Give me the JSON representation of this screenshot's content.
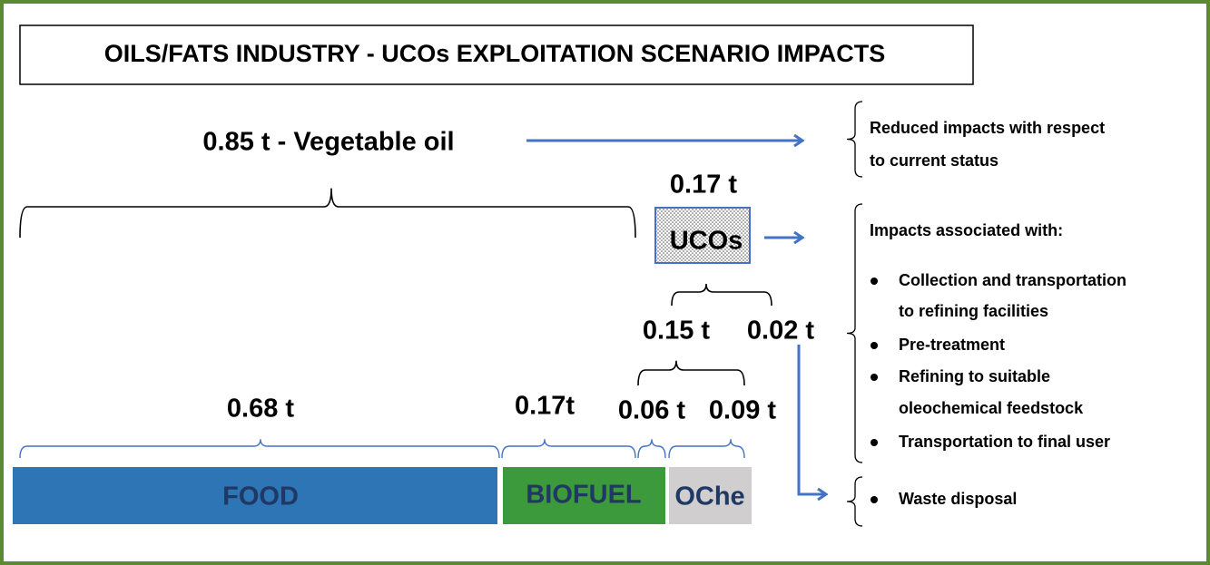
{
  "title": "OILS/FATS INDUSTRY - UCOs EXPLOITATION SCENARIO IMPACTS",
  "flow": {
    "vegetable_oil": "0.85 t - Vegetable oil",
    "ucos_amount": "0.17 t",
    "ucos": "UCOs",
    "ucos_split": [
      "0.15 t",
      "0.02 t"
    ],
    "use_amounts": [
      "0.68 t",
      "0.17t",
      "0.06 t",
      "0.09 t"
    ],
    "uses": [
      "FOOD",
      "BIOFUEL",
      "OChe"
    ]
  },
  "impacts": {
    "reduced": [
      "Reduced impacts with respect",
      "to current status"
    ],
    "associated_heading": "Impacts associated with:",
    "associated_items": [
      [
        "Collection and transportation",
        "to refining facilities"
      ],
      [
        "Pre-treatment"
      ],
      [
        "Refining to suitable",
        "oleochemical feedstock"
      ],
      [
        "Transportation to final user"
      ]
    ],
    "waste": "Waste disposal"
  }
}
